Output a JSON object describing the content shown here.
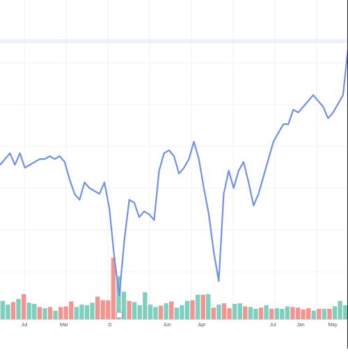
{
  "colors": {
    "line": "#6f8ff0",
    "bar_up": "#7fcfbe",
    "bar_down": "#f3948f",
    "grid": "#eef0f4",
    "band": "#dfe7fb",
    "axis_text": "#555555",
    "marker": "#ffffff"
  },
  "chart_data": [
    {
      "type": "line",
      "title": "",
      "xlabel": "",
      "ylabel": "",
      "grid": true,
      "x_tick_labels": [
        "Jul",
        "Mar",
        "D",
        "Jun",
        "Apr",
        "Jul",
        "Jan",
        "May"
      ],
      "ylim": [
        0,
        100
      ],
      "series": [
        {
          "values": [
            50,
            52,
            54,
            50,
            54,
            49,
            50,
            51,
            52,
            52,
            53,
            52,
            53,
            51,
            45,
            40,
            38,
            44,
            42,
            41,
            40,
            44,
            35,
            18,
            5,
            24,
            38,
            37,
            32,
            34,
            33,
            31,
            48,
            54,
            55,
            53,
            47,
            49,
            52,
            58,
            52,
            42,
            33,
            20,
            10,
            40,
            48,
            42,
            48,
            51,
            44,
            36,
            40,
            46,
            52,
            58,
            61,
            64,
            64,
            69,
            68,
            70,
            72,
            74,
            72,
            70,
            66,
            68,
            71,
            74,
            90
          ]
        }
      ]
    },
    {
      "type": "bar",
      "title": "",
      "xlabel": "",
      "ylabel": "",
      "ylim": [
        0,
        100
      ],
      "series": [
        {
          "values": [
            30,
            24,
            28,
            33,
            41,
            27,
            25,
            20,
            18,
            20,
            14,
            20,
            21,
            29,
            20,
            24,
            23,
            27,
            37,
            31,
            31,
            100,
            70,
            45,
            30,
            28,
            23,
            44,
            24,
            20,
            22,
            26,
            29,
            19,
            23,
            30,
            31,
            40,
            40,
            41,
            19,
            24,
            26,
            18,
            25,
            26,
            21,
            20,
            17,
            19,
            23,
            17,
            18,
            17,
            21,
            20,
            19,
            16,
            18,
            14,
            17,
            17,
            17,
            21,
            30,
            23
          ],
          "direction": [
            "up",
            "up",
            "down",
            "up",
            "down",
            "up",
            "up",
            "down",
            "up",
            "down",
            "up",
            "down",
            "down",
            "down",
            "up",
            "up",
            "up",
            "up",
            "down",
            "down",
            "down",
            "down",
            "up",
            "up",
            "down",
            "up",
            "up",
            "up",
            "up",
            "up",
            "down",
            "up",
            "down",
            "up",
            "up",
            "up",
            "down",
            "up",
            "down",
            "up",
            "down",
            "up",
            "down",
            "down",
            "up",
            "up",
            "down",
            "up",
            "up",
            "down",
            "up",
            "down",
            "up",
            "up",
            "up",
            "down",
            "down",
            "down",
            "down",
            "up",
            "down",
            "up",
            "down",
            "up",
            "up",
            "up"
          ]
        }
      ]
    }
  ]
}
